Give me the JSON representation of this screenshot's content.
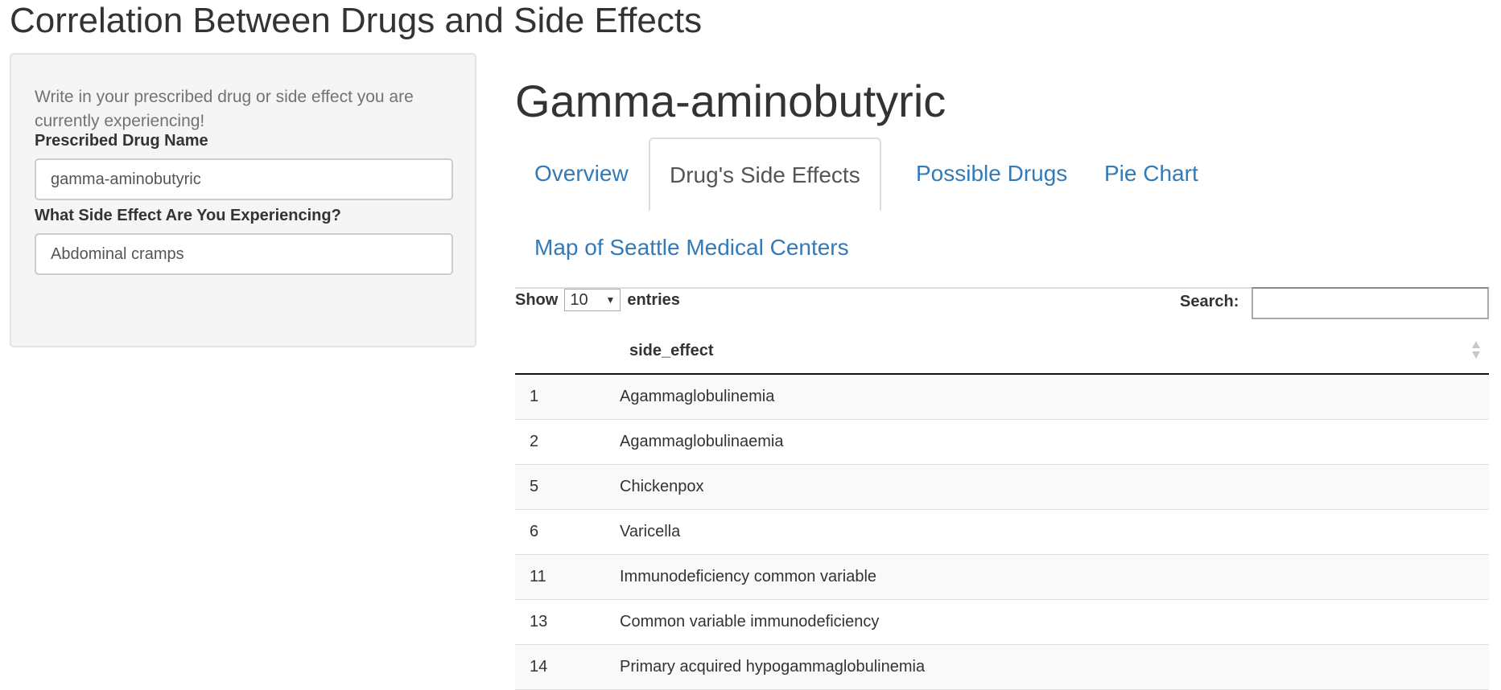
{
  "app": {
    "title": "Correlation Between Drugs and Side Effects"
  },
  "sidebar": {
    "help_text": "Write in your prescribed drug or side effect you are currently experiencing!",
    "drug_label": "Prescribed Drug Name",
    "drug_value": "gamma-aminobutyric",
    "side_effect_label": "What Side Effect Are You Experiencing?",
    "side_effect_value": "Abdominal cramps"
  },
  "main": {
    "title": "Gamma-aminobutyric",
    "tabs": [
      {
        "label": "Overview",
        "active": false
      },
      {
        "label": "Drug's Side Effects",
        "active": true
      },
      {
        "label": "Possible Drugs",
        "active": false
      },
      {
        "label": "Pie Chart",
        "active": false
      },
      {
        "label": "Map of Seattle Medical Centers",
        "active": false
      }
    ]
  },
  "table": {
    "show_label": "Show",
    "entries_label": "entries",
    "page_length": "10",
    "search_label": "Search:",
    "search_value": "",
    "columns": [
      "",
      "side_effect"
    ],
    "rows": [
      {
        "index": "1",
        "side_effect": "Agammaglobulinemia"
      },
      {
        "index": "2",
        "side_effect": "Agammaglobulinaemia"
      },
      {
        "index": "5",
        "side_effect": "Chickenpox"
      },
      {
        "index": "6",
        "side_effect": "Varicella"
      },
      {
        "index": "11",
        "side_effect": "Immunodeficiency common variable"
      },
      {
        "index": "13",
        "side_effect": "Common variable immunodeficiency"
      },
      {
        "index": "14",
        "side_effect": "Primary acquired hypogammaglobulinemia"
      }
    ]
  },
  "colors": {
    "link": "#337ab7",
    "sidebar_bg": "#f5f5f5",
    "text": "#333333",
    "muted": "#737373"
  },
  "icons": {
    "sort": "sort-both-icon",
    "select_arrow": "caret-down-icon"
  }
}
